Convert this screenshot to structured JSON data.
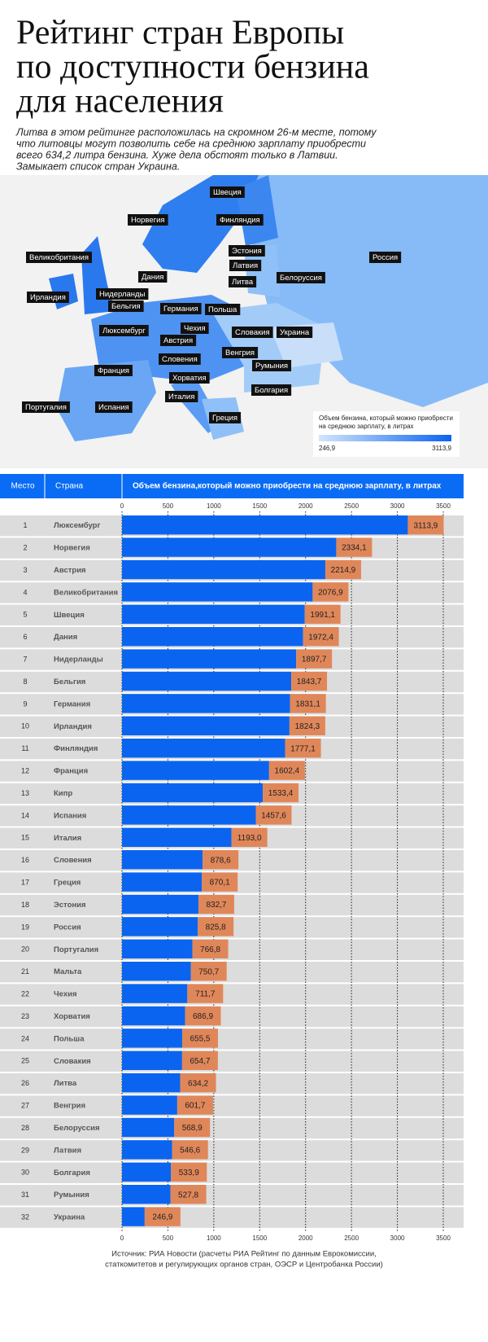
{
  "header": {
    "title": [
      "Рейтинг стран Европы",
      "по доступности бензина",
      "для населения"
    ],
    "subtitle": [
      "Литва в этом рейтинге расположилась на скромном 26-м месте, потому",
      "что литовцы могут позволить себе на среднюю зарплату приобрести",
      "всего 634,2 литра бензина. Хуже дела обстоят только в Латвии.",
      "Замыкает список стран Украина."
    ]
  },
  "map": {
    "labels": [
      "Швеция",
      "Норвегия",
      "Финляндия",
      "Великобритания",
      "Эстония",
      "Россия",
      "Латвия",
      "Дания",
      "Литва",
      "Белоруссия",
      "Ирландия",
      "Нидерланды",
      "Бельгия",
      "Германия",
      "Польша",
      "Люксембург",
      "Чехия",
      "Австрия",
      "Словакия",
      "Украина",
      "Словения",
      "Венгрия",
      "Франция",
      "Румыния",
      "Хорватия",
      "Италия",
      "Болгария",
      "Португалия",
      "Испания",
      "Греция"
    ],
    "legend": {
      "title": [
        "Объем бензина, который можно приобрести",
        "на среднюю зарплату, в литрах"
      ],
      "min": {
        "value": 246.9,
        "label": "246,9"
      },
      "max": {
        "value": 3113.9,
        "label": "3113,9"
      },
      "colors": [
        "#d4e6fb",
        "#0a64f0"
      ]
    }
  },
  "chart_data": {
    "type": "bar",
    "orientation": "horizontal",
    "column_headers": [
      "Место",
      "Страна"
    ],
    "x_label": "Объем бензина,который можно приобрести на среднюю зарплату, в литрах",
    "ranks": [
      1,
      2,
      3,
      4,
      5,
      6,
      7,
      8,
      9,
      10,
      11,
      12,
      13,
      14,
      15,
      16,
      17,
      18,
      19,
      20,
      21,
      22,
      23,
      24,
      25,
      26,
      27,
      28,
      29,
      30,
      31,
      32
    ],
    "categories": [
      "Люксембург",
      "Норвегия",
      "Австрия",
      "Великобритания",
      "Швеция",
      "Дания",
      "Нидерланды",
      "Бельгия",
      "Германия",
      "Ирландия",
      "Финляндия",
      "Франция",
      "Кипр",
      "Испания",
      "Италия",
      "Словения",
      "Греция",
      "Эстония",
      "Россия",
      "Португалия",
      "Мальта",
      "Чехия",
      "Хорватия",
      "Польша",
      "Словакия",
      "Литва",
      "Венгрия",
      "Белоруссия",
      "Латвия",
      "Болгария",
      "Румыния",
      "Украина"
    ],
    "values": [
      3113.9,
      2334.1,
      2214.9,
      2076.9,
      1991.1,
      1972.4,
      1897.7,
      1843.7,
      1831.1,
      1824.3,
      1777.1,
      1602.4,
      1533.4,
      1457.6,
      1193.0,
      878.6,
      870.1,
      832.7,
      825.8,
      766.8,
      750.7,
      711.7,
      686.9,
      655.5,
      654.7,
      634.2,
      601.7,
      568.9,
      546.6,
      533.9,
      527.8,
      246.9
    ],
    "value_labels": [
      "3113,9",
      "2334,1",
      "2214,9",
      "2076,9",
      "1991,1",
      "1972,4",
      "1897,7",
      "1843,7",
      "1831,1",
      "1824,3",
      "1777,1",
      "1602,4",
      "1533,4",
      "1457,6",
      "1193,0",
      "878,6",
      "870,1",
      "832,7",
      "825,8",
      "766,8",
      "750,7",
      "711,7",
      "686,9",
      "655,5",
      "654,7",
      "634,2",
      "601,7",
      "568,9",
      "546,6",
      "533,9",
      "527,8",
      "246,9"
    ],
    "color": "#0a64f0",
    "label_color": "#e0875a",
    "xlim": [
      0,
      3500
    ],
    "xticks": [
      0,
      500,
      1000,
      1500,
      2000,
      2500,
      3000,
      3500
    ],
    "grid": true
  },
  "source": [
    "Источник: РИА Новости (расчеты РИА Рейтинг по данным Еврокомиссии,",
    "статкомитетов и регулирующих органов стран, ОЭСР и Центробанка России)"
  ]
}
